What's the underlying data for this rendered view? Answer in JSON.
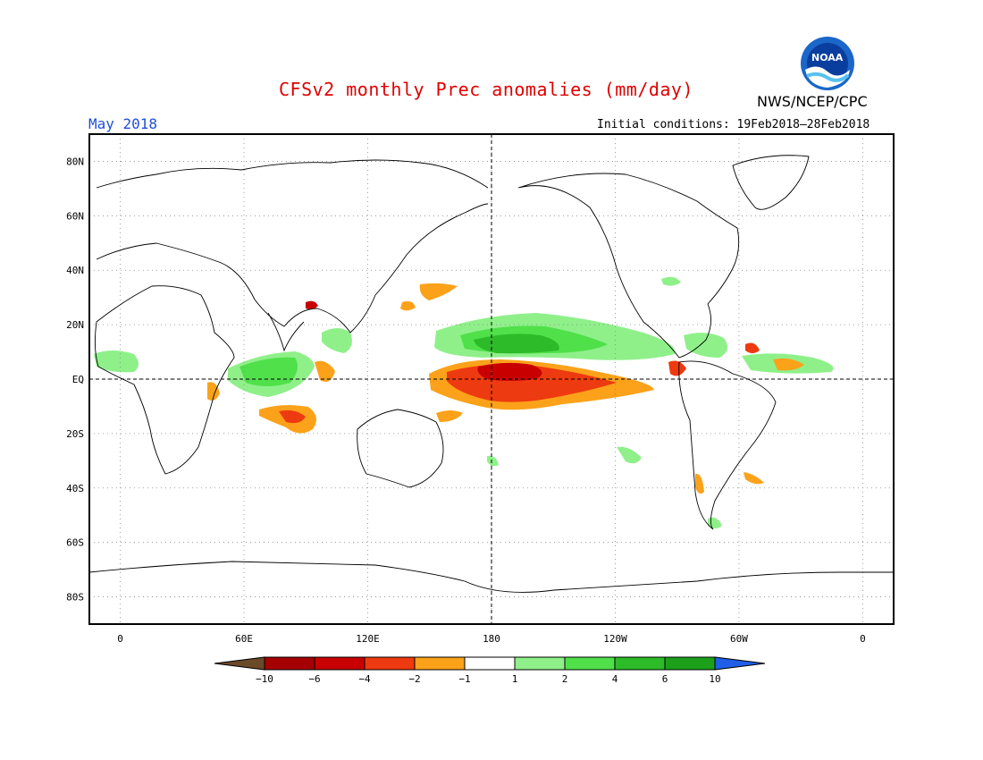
{
  "header": {
    "title": "CFSv2 monthly Prec anomalies (mm/day)",
    "period": "May 2018",
    "initial_conditions": "Initial conditions: 19Feb2018–28Feb2018",
    "agency": "NWS/NCEP/CPC",
    "logo_text": "NOAA"
  },
  "map": {
    "lat_labels": [
      "80N",
      "60N",
      "40N",
      "20N",
      "EQ",
      "20S",
      "40S",
      "60S",
      "80S"
    ],
    "lon_labels": [
      "0",
      "60E",
      "120E",
      "180",
      "120W",
      "60W",
      "0"
    ],
    "projection": "cylindrical equidistant",
    "grid": "dotted",
    "reference_lines": [
      "equator",
      "dateline"
    ]
  },
  "legend": {
    "tick_labels": [
      "−10",
      "−6",
      "−4",
      "−2",
      "−1",
      "1",
      "2",
      "4",
      "6",
      "10"
    ],
    "colors": [
      "#6b4a2a",
      "#a50000",
      "#c80000",
      "#ee3a10",
      "#fba21a",
      "#ffffff",
      "#8ff08a",
      "#50e04a",
      "#2dbb29",
      "#1ca01a",
      "#1f5fe8"
    ]
  },
  "anomalies": [
    {
      "region": "Central Pacific equatorial",
      "sign": "negative",
      "category": "-6 to -10"
    },
    {
      "region": "Central/eastern Pacific equatorial",
      "sign": "negative",
      "category": "-2 to -4"
    },
    {
      "region": "Pacific ITCZ north of equator",
      "sign": "positive",
      "category": "1 to 6"
    },
    {
      "region": "Equatorial Indian Ocean",
      "sign": "positive",
      "category": "1 to 4"
    },
    {
      "region": "Southern Indian Ocean",
      "sign": "negative",
      "category": "-1 to -4"
    },
    {
      "region": "Western Pacific / Maritime Continent",
      "sign": "negative",
      "category": "-1 to -4"
    },
    {
      "region": "Tropical Atlantic",
      "sign": "positive",
      "category": "1 to 2"
    }
  ]
}
